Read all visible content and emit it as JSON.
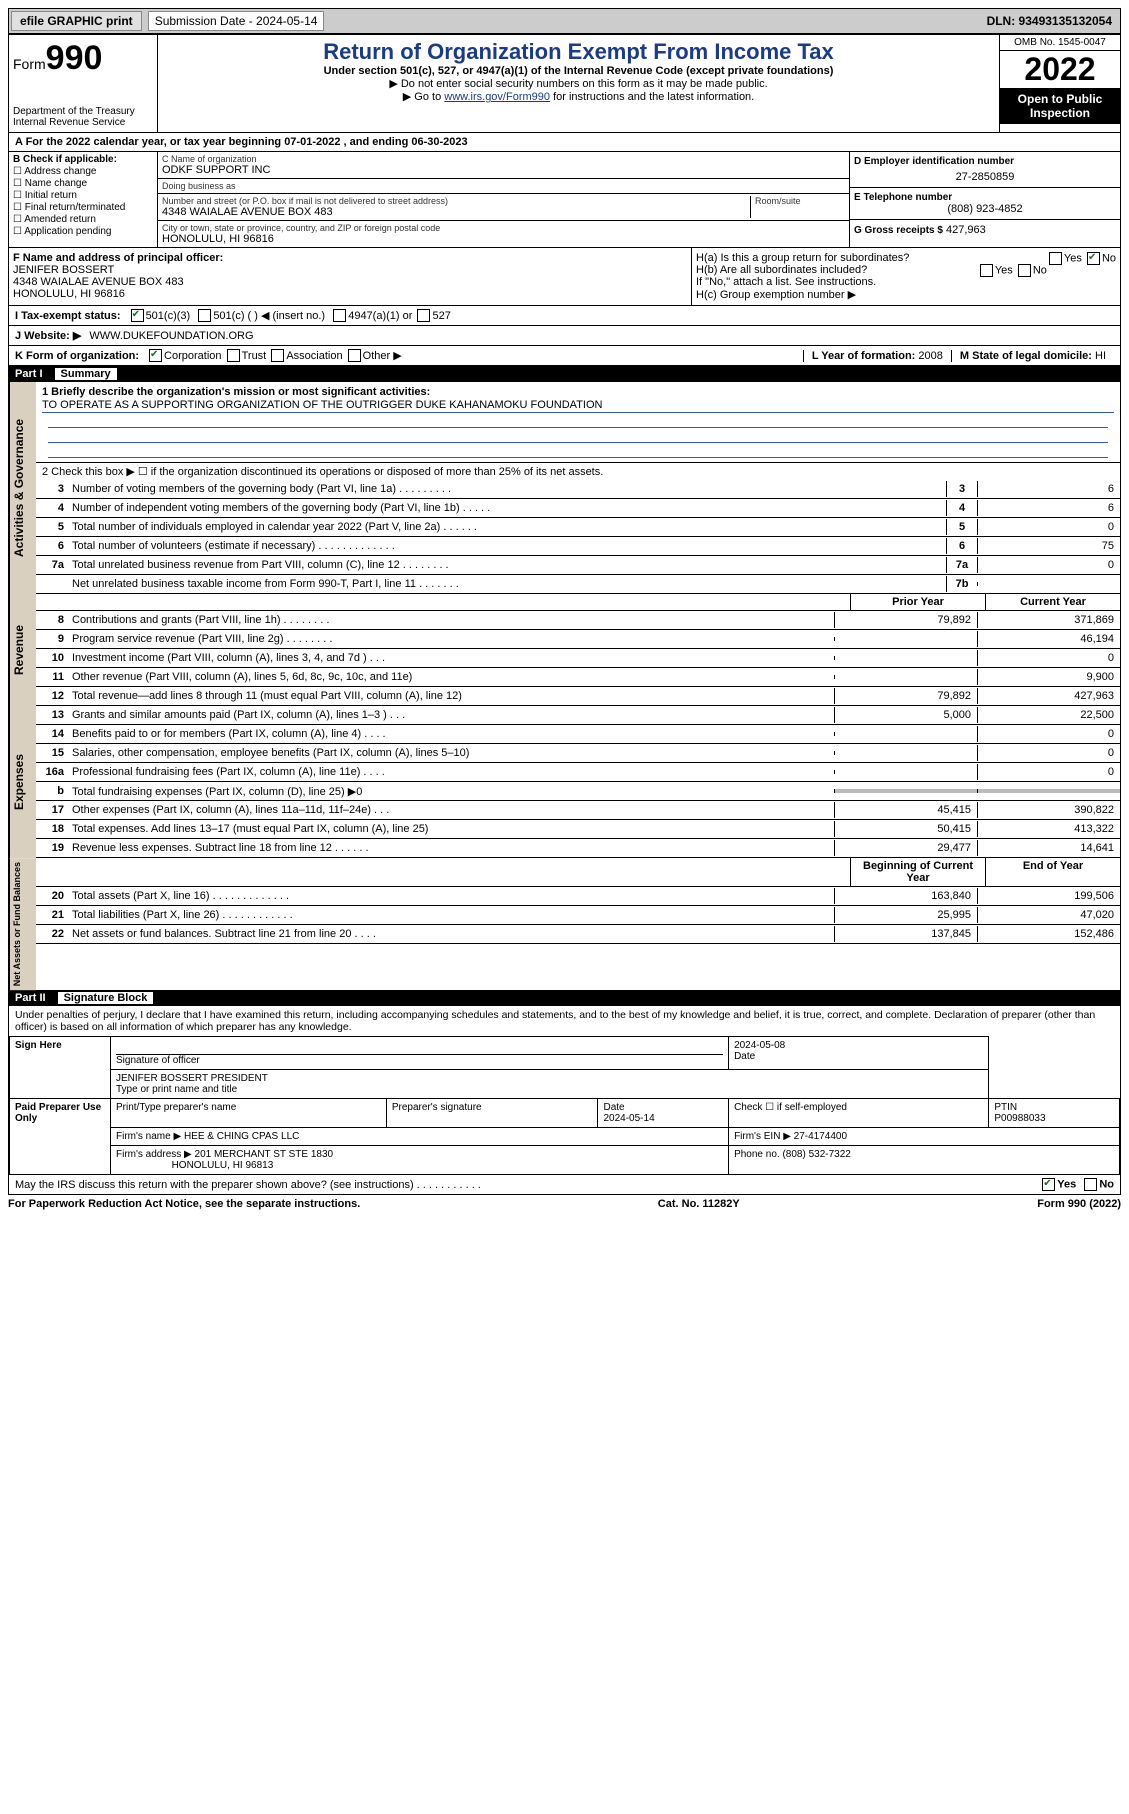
{
  "topbar": {
    "efile": "efile GRAPHIC print",
    "sub_label": "Submission Date - 2024-05-14",
    "dln": "DLN: 93493135132054"
  },
  "header": {
    "form_word": "Form",
    "form_num": "990",
    "dept": "Department of the Treasury",
    "irs": "Internal Revenue Service",
    "title": "Return of Organization Exempt From Income Tax",
    "sub1": "Under section 501(c), 527, or 4947(a)(1) of the Internal Revenue Code (except private foundations)",
    "sub2": "▶ Do not enter social security numbers on this form as it may be made public.",
    "sub3_pre": "▶ Go to ",
    "sub3_link": "www.irs.gov/Form990",
    "sub3_post": " for instructions and the latest information.",
    "omb": "OMB No. 1545-0047",
    "year": "2022",
    "inspect": "Open to Public Inspection"
  },
  "period": {
    "line": "A For the 2022 calendar year, or tax year beginning 07-01-2022   , and ending 06-30-2023"
  },
  "sectionB": {
    "title": "B Check if applicable:",
    "items": [
      "Address change",
      "Name change",
      "Initial return",
      "Final return/terminated",
      "Amended return",
      "Application pending"
    ]
  },
  "sectionC": {
    "name_label": "C Name of organization",
    "name": "ODKF SUPPORT INC",
    "dba_label": "Doing business as",
    "dba": "",
    "street_label": "Number and street (or P.O. box if mail is not delivered to street address)",
    "room_label": "Room/suite",
    "street": "4348 WAIALAE AVENUE BOX 483",
    "city_label": "City or town, state or province, country, and ZIP or foreign postal code",
    "city": "HONOLULU, HI  96816"
  },
  "sectionD": {
    "label": "D Employer identification number",
    "value": "27-2850859"
  },
  "sectionE": {
    "label": "E Telephone number",
    "value": "(808) 923-4852"
  },
  "sectionG": {
    "label": "G Gross receipts $",
    "value": "427,963"
  },
  "sectionF": {
    "label": "F Name and address of principal officer:",
    "name": "JENIFER BOSSERT",
    "addr1": "4348 WAIALAE AVENUE BOX 483",
    "addr2": "HONOLULU, HI  96816"
  },
  "sectionH": {
    "ha_label": "H(a)  Is this a group return for subordinates?",
    "ha_yes": "Yes",
    "ha_no": "No",
    "hb_label": "H(b)  Are all subordinates included?",
    "hb_yes": "Yes",
    "hb_no": "No",
    "hb_note": "If \"No,\" attach a list. See instructions.",
    "hc_label": "H(c)  Group exemption number ▶"
  },
  "sectionI": {
    "label": "I   Tax-exempt status:",
    "o1": "501(c)(3)",
    "o2": "501(c) (  ) ◀ (insert no.)",
    "o3": "4947(a)(1) or",
    "o4": "527"
  },
  "sectionJ": {
    "label": "J   Website: ▶",
    "value": "WWW.DUKEFOUNDATION.ORG"
  },
  "sectionK": {
    "label": "K Form of organization:",
    "o1": "Corporation",
    "o2": "Trust",
    "o3": "Association",
    "o4": "Other ▶"
  },
  "sectionL": {
    "label": "L Year of formation:",
    "value": "2008"
  },
  "sectionM": {
    "label": "M State of legal domicile:",
    "value": "HI"
  },
  "part1": {
    "header_part": "Part I",
    "header_title": "Summary",
    "line1_label": "1  Briefly describe the organization's mission or most significant activities:",
    "line1_text": "TO OPERATE AS A SUPPORTING ORGANIZATION OF THE OUTRIGGER DUKE KAHANAMOKU FOUNDATION",
    "line2": "2   Check this box ▶ ☐  if the organization discontinued its operations or disposed of more than 25% of its net assets.",
    "lines_gov": [
      {
        "n": "3",
        "d": "Number of voting members of the governing body (Part VI, line 1a)   .   .   .   .   .   .   .   .   .",
        "b": "3",
        "v": "6"
      },
      {
        "n": "4",
        "d": "Number of independent voting members of the governing body (Part VI, line 1b)   .   .   .   .   .",
        "b": "4",
        "v": "6"
      },
      {
        "n": "5",
        "d": "Total number of individuals employed in calendar year 2022 (Part V, line 2a)   .   .   .   .   .   .",
        "b": "5",
        "v": "0"
      },
      {
        "n": "6",
        "d": "Total number of volunteers (estimate if necessary)   .   .   .   .   .   .   .   .   .   .   .   .   .",
        "b": "6",
        "v": "75"
      },
      {
        "n": "7a",
        "d": "Total unrelated business revenue from Part VIII, column (C), line 12   .   .   .   .   .   .   .   .",
        "b": "7a",
        "v": "0"
      },
      {
        "n": "",
        "d": "Net unrelated business taxable income from Form 990-T, Part I, line 11   .   .   .   .   .   .   .",
        "b": "7b",
        "v": ""
      }
    ],
    "prior_label": "Prior Year",
    "current_label": "Current Year",
    "lines_rev": [
      {
        "n": "8",
        "d": "Contributions and grants (Part VIII, line 1h)   .   .   .   .   .   .   .   .",
        "p": "79,892",
        "c": "371,869"
      },
      {
        "n": "9",
        "d": "Program service revenue (Part VIII, line 2g)   .   .   .   .   .   .   .   .",
        "p": "",
        "c": "46,194"
      },
      {
        "n": "10",
        "d": "Investment income (Part VIII, column (A), lines 3, 4, and 7d )   .   .   .",
        "p": "",
        "c": "0"
      },
      {
        "n": "11",
        "d": "Other revenue (Part VIII, column (A), lines 5, 6d, 8c, 9c, 10c, and 11e)",
        "p": "",
        "c": "9,900"
      },
      {
        "n": "12",
        "d": "Total revenue—add lines 8 through 11 (must equal Part VIII, column (A), line 12)",
        "p": "79,892",
        "c": "427,963"
      }
    ],
    "lines_exp": [
      {
        "n": "13",
        "d": "Grants and similar amounts paid (Part IX, column (A), lines 1–3 )   .   .   .",
        "p": "5,000",
        "c": "22,500"
      },
      {
        "n": "14",
        "d": "Benefits paid to or for members (Part IX, column (A), line 4)   .   .   .   .",
        "p": "",
        "c": "0"
      },
      {
        "n": "15",
        "d": "Salaries, other compensation, employee benefits (Part IX, column (A), lines 5–10)",
        "p": "",
        "c": "0"
      },
      {
        "n": "16a",
        "d": "Professional fundraising fees (Part IX, column (A), line 11e)   .   .   .   .",
        "p": "",
        "c": "0"
      },
      {
        "n": "b",
        "d": "Total fundraising expenses (Part IX, column (D), line 25) ▶0",
        "p": "shade",
        "c": "shade"
      },
      {
        "n": "17",
        "d": "Other expenses (Part IX, column (A), lines 11a–11d, 11f–24e)   .   .   .",
        "p": "45,415",
        "c": "390,822"
      },
      {
        "n": "18",
        "d": "Total expenses. Add lines 13–17 (must equal Part IX, column (A), line 25)",
        "p": "50,415",
        "c": "413,322"
      },
      {
        "n": "19",
        "d": "Revenue less expenses. Subtract line 18 from line 12   .   .   .   .   .   .",
        "p": "29,477",
        "c": "14,641"
      }
    ],
    "beg_label": "Beginning of Current Year",
    "end_label": "End of Year",
    "lines_na": [
      {
        "n": "20",
        "d": "Total assets (Part X, line 16)   .   .   .   .   .   .   .   .   .   .   .   .   .",
        "p": "163,840",
        "c": "199,506"
      },
      {
        "n": "21",
        "d": "Total liabilities (Part X, line 26)   .   .   .   .   .   .   .   .   .   .   .   .",
        "p": "25,995",
        "c": "47,020"
      },
      {
        "n": "22",
        "d": "Net assets or fund balances. Subtract line 21 from line 20   .   .   .   .",
        "p": "137,845",
        "c": "152,486"
      }
    ],
    "side_gov": "Activities & Governance",
    "side_rev": "Revenue",
    "side_exp": "Expenses",
    "side_na": "Net Assets or Fund Balances"
  },
  "part2": {
    "header_part": "Part II",
    "header_title": "Signature Block",
    "decl": "Under penalties of perjury, I declare that I have examined this return, including accompanying schedules and statements, and to the best of my knowledge and belief, it is true, correct, and complete. Declaration of preparer (other than officer) is based on all information of which preparer has any knowledge.",
    "sign_here": "Sign Here",
    "sig_officer": "Signature of officer",
    "sig_date": "Date",
    "sig_date_val": "2024-05-08",
    "sig_name": "JENIFER BOSSERT  PRESIDENT",
    "sig_name_label": "Type or print name and title",
    "paid": "Paid Preparer Use Only",
    "prep_name_label": "Print/Type preparer's name",
    "prep_sig_label": "Preparer's signature",
    "prep_date_label": "Date",
    "prep_date": "2024-05-14",
    "prep_check": "Check ☐ if self-employed",
    "ptin_label": "PTIN",
    "ptin": "P00988033",
    "firm_name_label": "Firm's name    ▶",
    "firm_name": "HEE & CHING CPAS LLC",
    "firm_ein_label": "Firm's EIN ▶",
    "firm_ein": "27-4174400",
    "firm_addr_label": "Firm's address ▶",
    "firm_addr1": "201 MERCHANT ST STE 1830",
    "firm_addr2": "HONOLULU, HI  96813",
    "firm_phone_label": "Phone no.",
    "firm_phone": "(808) 532-7322",
    "discuss": "May the IRS discuss this return with the preparer shown above? (see instructions)   .   .   .   .   .   .   .   .   .   .   .",
    "discuss_yes": "Yes",
    "discuss_no": "No"
  },
  "footer": {
    "left": "For Paperwork Reduction Act Notice, see the separate instructions.",
    "mid": "Cat. No. 11282Y",
    "right": "Form 990 (2022)"
  }
}
